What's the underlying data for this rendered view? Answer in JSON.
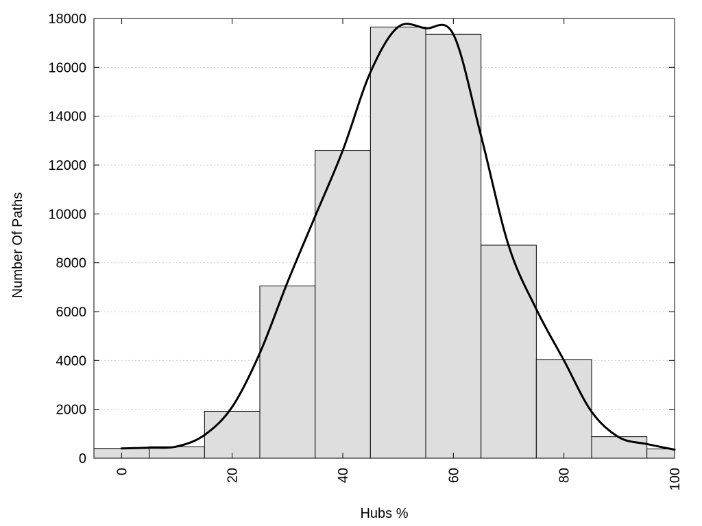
{
  "chart_data": {
    "type": "bar",
    "xlabel": "Hubs %",
    "ylabel": "Number Of Paths",
    "xlim": [
      -5,
      100
    ],
    "ylim": [
      0,
      18000
    ],
    "x_ticks": [
      0,
      20,
      40,
      60,
      80,
      100
    ],
    "y_ticks": [
      0,
      2000,
      4000,
      6000,
      8000,
      10000,
      12000,
      14000,
      16000,
      18000
    ],
    "grid": "horizontal-dotted",
    "bar_color": "#dedede",
    "bin_width": 10,
    "bins": [
      {
        "center": 0,
        "value": 400
      },
      {
        "center": 10,
        "value": 470
      },
      {
        "center": 20,
        "value": 1920
      },
      {
        "center": 30,
        "value": 7050
      },
      {
        "center": 40,
        "value": 12600
      },
      {
        "center": 50,
        "value": 17650
      },
      {
        "center": 60,
        "value": 17350
      },
      {
        "center": 70,
        "value": 8720
      },
      {
        "center": 80,
        "value": 4040
      },
      {
        "center": 90,
        "value": 880
      },
      {
        "center": 100,
        "value": 380
      }
    ],
    "curve": {
      "type": "line",
      "x": [
        0,
        5,
        10,
        15,
        20,
        25,
        30,
        35,
        40,
        45,
        50,
        55,
        60,
        65,
        70,
        75,
        80,
        85,
        90,
        95,
        100
      ],
      "y": [
        400,
        430,
        480,
        950,
        2100,
        4300,
        7200,
        9900,
        12600,
        15800,
        17650,
        17600,
        17350,
        13200,
        8700,
        6100,
        4000,
        1900,
        850,
        580,
        350
      ]
    }
  }
}
